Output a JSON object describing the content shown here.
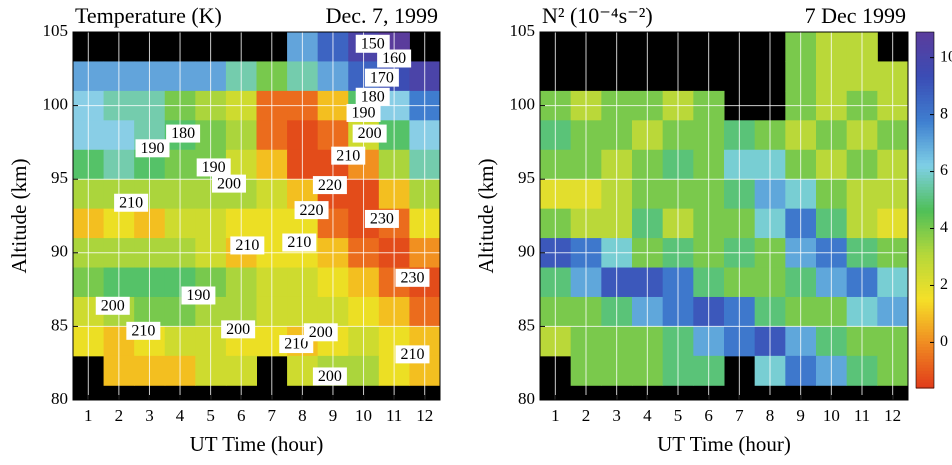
{
  "chart_data": [
    {
      "type": "heatmap",
      "title": "Temperature (K)",
      "subtitle": "Dec. 7, 1999",
      "xlabel": "UT Time (hour)",
      "ylabel": "Altitude (km)",
      "xlim": [
        0.5,
        12.5
      ],
      "xticks": [
        1,
        2,
        3,
        4,
        5,
        6,
        7,
        8,
        9,
        10,
        11,
        12
      ],
      "ylim": [
        80,
        105
      ],
      "yticks": [
        80,
        85,
        90,
        95,
        100,
        105
      ],
      "grid": true,
      "x": [
        1,
        2,
        3,
        4,
        5,
        6,
        7,
        8,
        9,
        10,
        11,
        12
      ],
      "y": [
        104,
        102,
        100,
        98,
        96,
        94,
        92,
        90,
        88,
        86,
        84,
        82
      ],
      "z": [
        [
          null,
          null,
          null,
          null,
          null,
          null,
          null,
          175,
          165,
          155,
          150,
          null
        ],
        [
          175,
          175,
          175,
          175,
          175,
          185,
          195,
          185,
          175,
          165,
          160,
          155
        ],
        [
          180,
          185,
          185,
          195,
          200,
          205,
          225,
          225,
          215,
          190,
          180,
          170
        ],
        [
          180,
          180,
          185,
          190,
          195,
          200,
          225,
          230,
          225,
          205,
          190,
          180
        ],
        [
          190,
          185,
          190,
          195,
          195,
          205,
          215,
          230,
          230,
          220,
          200,
          185
        ],
        [
          200,
          200,
          200,
          200,
          200,
          200,
          205,
          215,
          230,
          230,
          215,
          200
        ],
        [
          215,
          210,
          215,
          205,
          205,
          210,
          210,
          210,
          225,
          230,
          225,
          210
        ],
        [
          200,
          200,
          200,
          200,
          205,
          215,
          210,
          210,
          215,
          225,
          230,
          220
        ],
        [
          195,
          190,
          190,
          190,
          195,
          200,
          205,
          205,
          210,
          215,
          225,
          230
        ],
        [
          205,
          200,
          195,
          195,
          200,
          200,
          205,
          205,
          205,
          210,
          215,
          225
        ],
        [
          210,
          215,
          210,
          205,
          205,
          210,
          210,
          215,
          210,
          205,
          210,
          215
        ],
        [
          null,
          215,
          215,
          215,
          205,
          205,
          null,
          205,
          200,
          200,
          210,
          215
        ]
      ],
      "clim": [
        150,
        232
      ],
      "colormap": [
        "#5a3c9c",
        "#3b4db5",
        "#3f7fd0",
        "#8fd4e8",
        "#4fc05a",
        "#b8d838",
        "#f5e020",
        "#f08020",
        "#e04018"
      ],
      "contour_labels": [
        {
          "value": 150,
          "x": 10.3,
          "y": 104.2
        },
        {
          "value": 160,
          "x": 11,
          "y": 103.2
        },
        {
          "value": 170,
          "x": 10.6,
          "y": 101.9
        },
        {
          "value": 180,
          "x": 10.3,
          "y": 100.6
        },
        {
          "value": 190,
          "x": 10,
          "y": 99.5
        },
        {
          "value": 200,
          "x": 10.2,
          "y": 98.1
        },
        {
          "value": 210,
          "x": 9.5,
          "y": 96.6
        },
        {
          "value": 220,
          "x": 8.9,
          "y": 94.6
        },
        {
          "value": 220,
          "x": 8.3,
          "y": 92.9
        },
        {
          "value": 230,
          "x": 10.6,
          "y": 92.3
        },
        {
          "value": 230,
          "x": 11.6,
          "y": 88.3
        },
        {
          "value": 210,
          "x": 7.9,
          "y": 90.7
        },
        {
          "value": 210,
          "x": 6.2,
          "y": 90.5
        },
        {
          "value": 210,
          "x": 2.4,
          "y": 93.4
        },
        {
          "value": 200,
          "x": 5.6,
          "y": 94.7
        },
        {
          "value": 190,
          "x": 5.1,
          "y": 95.8
        },
        {
          "value": 190,
          "x": 3.1,
          "y": 97.1
        },
        {
          "value": 180,
          "x": 4.1,
          "y": 98.1
        },
        {
          "value": 200,
          "x": 1.8,
          "y": 86.4
        },
        {
          "value": 190,
          "x": 4.6,
          "y": 87.1
        },
        {
          "value": 210,
          "x": 2.8,
          "y": 84.7
        },
        {
          "value": 200,
          "x": 5.9,
          "y": 84.8
        },
        {
          "value": 210,
          "x": 7.8,
          "y": 83.8
        },
        {
          "value": 200,
          "x": 8.6,
          "y": 84.6
        },
        {
          "value": 200,
          "x": 8.9,
          "y": 81.6
        },
        {
          "value": 210,
          "x": 11.6,
          "y": 83.1
        }
      ]
    },
    {
      "type": "heatmap",
      "title": "N² (10⁻⁴s⁻²)",
      "subtitle": "7 Dec 1999",
      "xlabel": "UT Time (hour)",
      "ylabel": "Altitude (km)",
      "xlim": [
        0.5,
        12.5
      ],
      "xticks": [
        1,
        2,
        3,
        4,
        5,
        6,
        7,
        8,
        9,
        10,
        11,
        12
      ],
      "ylim": [
        80,
        105
      ],
      "yticks": [
        80,
        85,
        90,
        95,
        100,
        105
      ],
      "grid": true,
      "x": [
        1,
        2,
        3,
        4,
        5,
        6,
        7,
        8,
        9,
        10,
        11,
        12
      ],
      "y": [
        104,
        102,
        100,
        98,
        96,
        94,
        92,
        90,
        88,
        86,
        84,
        82
      ],
      "z": [
        [
          null,
          null,
          null,
          null,
          null,
          null,
          null,
          null,
          4,
          3,
          3,
          null
        ],
        [
          null,
          null,
          null,
          null,
          null,
          null,
          null,
          null,
          4,
          3,
          3,
          3
        ],
        [
          4,
          3,
          4,
          4,
          3,
          4,
          null,
          null,
          4,
          3,
          4,
          3
        ],
        [
          5,
          4,
          4,
          3,
          4,
          4,
          5,
          4,
          3,
          4,
          3,
          4
        ],
        [
          4,
          4,
          3,
          4,
          5,
          4,
          6,
          6,
          4,
          3,
          4,
          3
        ],
        [
          2,
          2,
          3,
          4,
          4,
          4,
          5,
          7,
          6,
          4,
          3,
          3
        ],
        [
          4,
          3,
          3,
          5,
          3,
          4,
          4,
          6,
          8,
          5,
          3,
          2
        ],
        [
          9,
          8,
          6,
          4,
          5,
          4,
          5,
          4,
          7,
          8,
          5,
          4
        ],
        [
          5,
          7,
          9,
          9,
          8,
          5,
          4,
          4,
          5,
          7,
          8,
          6
        ],
        [
          4,
          4,
          5,
          7,
          8,
          9,
          8,
          5,
          4,
          4,
          6,
          7
        ],
        [
          3,
          4,
          4,
          4,
          5,
          7,
          8,
          9,
          7,
          5,
          4,
          4
        ],
        [
          null,
          4,
          4,
          4,
          5,
          5,
          null,
          6,
          8,
          7,
          5,
          4
        ]
      ],
      "clim": [
        -1.6,
        10.9
      ],
      "colormap": [
        "#e03a1a",
        "#f08a22",
        "#f5e028",
        "#b6d83a",
        "#4fbf58",
        "#7fd0e6",
        "#3f7fd0",
        "#3b4db5",
        "#5a3c9c"
      ],
      "colorbar_ticks": [
        0,
        2,
        4,
        6,
        8,
        10
      ]
    }
  ]
}
